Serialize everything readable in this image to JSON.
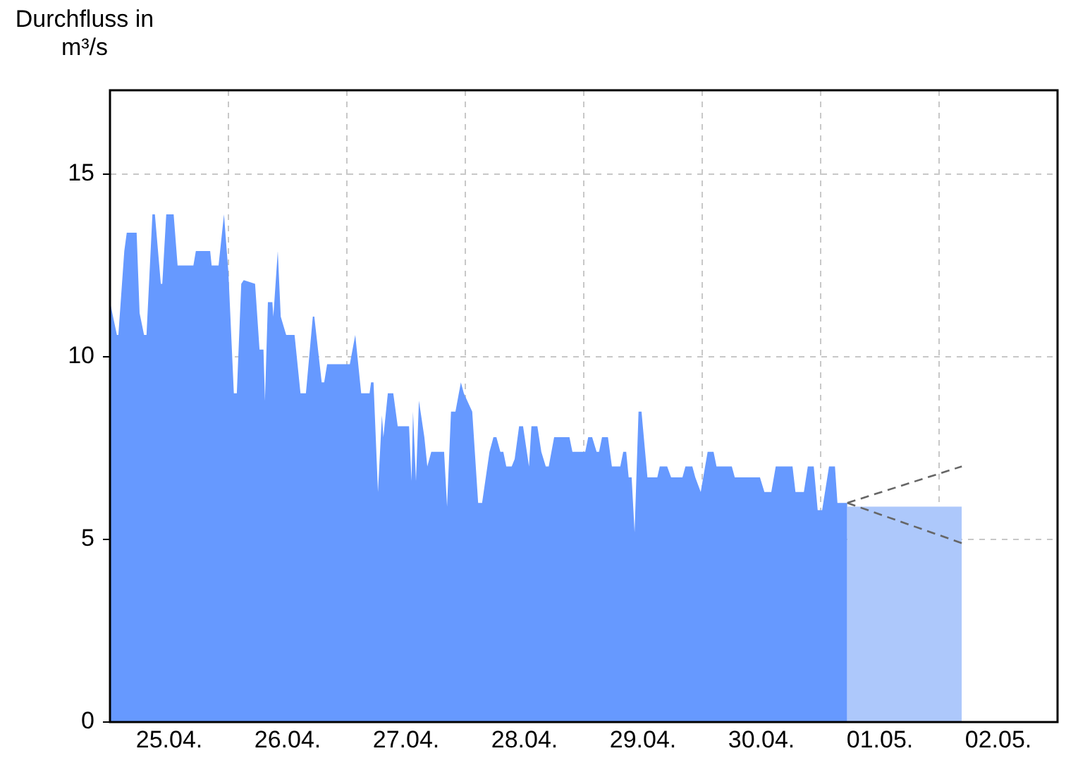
{
  "chart_data": {
    "type": "area",
    "ylabel": "Durchfluss in m³/s",
    "xlim": [
      "--04-25T00:00",
      "--05-03T00:00"
    ],
    "xticks": [
      {
        "value": "--04-25T00:00",
        "label": null
      },
      {
        "value": "--04-25T12:00",
        "label": "25.04."
      },
      {
        "value": "--04-26T00:00",
        "label": null
      },
      {
        "value": "--04-26T12:00",
        "label": "26.04."
      },
      {
        "value": "--04-27T00:00",
        "label": null
      },
      {
        "value": "--04-27T12:00",
        "label": "27.04."
      },
      {
        "value": "--04-28T00:00",
        "label": null
      },
      {
        "value": "--04-28T12:00",
        "label": "28.04."
      },
      {
        "value": "--04-29T00:00",
        "label": null
      },
      {
        "value": "--04-29T12:00",
        "label": "29.04."
      },
      {
        "value": "--04-30T00:00",
        "label": null
      },
      {
        "value": "--04-30T12:00",
        "label": "30.04."
      },
      {
        "value": "--05-01T00:00",
        "label": null
      },
      {
        "value": "--05-01T12:00",
        "label": "01.05."
      },
      {
        "value": "--05-02T00:00",
        "label": null
      },
      {
        "value": "--05-02T12:00",
        "label": "02.05."
      },
      {
        "value": "--05-03T00:00",
        "label": null
      }
    ],
    "ylim": [
      0,
      17.3
    ],
    "yticks": [
      0,
      5,
      10,
      15
    ],
    "grid": true,
    "legend": false,
    "marker": "none",
    "series": [
      {
        "color": "#6699ff",
        "x": [
          "--04-25T00:00",
          "--04-25T01:24",
          "--04-25T01:42",
          "--04-25T02:54",
          "--04-25T03:24",
          "--04-25T05:24",
          "--04-25T06:00",
          "--04-25T06:54",
          "--04-25T07:24",
          "--04-25T08:36",
          "--04-25T09:06",
          "--04-25T10:18",
          "--04-25T10:36",
          "--04-25T11:24",
          "--04-25T12:54",
          "--04-25T13:42",
          "--04-25T16:54",
          "--04-25T17:24",
          "--04-25T20:18",
          "--04-25T20:36",
          "--04-25T22:00",
          "--04-25T23:06",
          "--04-26T00:00",
          "--04-26T01:06",
          "--04-26T01:42",
          "--04-26T02:36",
          "--04-26T03:06",
          "--04-26T05:24",
          "--04-26T06:18",
          "--04-26T07:06",
          "--04-26T07:24",
          "--04-26T08:00",
          "--04-26T08:54",
          "--04-26T09:06",
          "--04-26T10:00",
          "--04-26T10:36",
          "--04-26T11:42",
          "--04-26T13:24",
          "--04-26T14:36",
          "--04-26T15:42",
          "--04-26T17:06",
          "--04-26T17:24",
          "--04-26T18:54",
          "--04-26T19:24",
          "--04-26T20:00",
          "--04-27T00:36",
          "--04-27T01:42",
          "--04-27T02:54",
          "--04-27T04:36",
          "--04-27T04:54",
          "--04-27T05:24",
          "--04-27T06:18",
          "--04-27T07:06",
          "--04-27T07:24",
          "--04-27T08:18",
          "--04-27T09:24",
          "--04-27T10:18",
          "--04-27T12:36",
          "--04-27T13:06",
          "--04-27T13:24",
          "--04-27T14:00",
          "--04-27T14:36",
          "--04-27T15:42",
          "--04-27T16:18",
          "--04-27T17:06",
          "--04-27T19:42",
          "--04-27T20:18",
          "--04-27T21:06",
          "--04-27T22:00",
          "--04-27T23:06",
          "--04-27T23:42",
          "--04-28T01:24",
          "--04-28T02:36",
          "--04-28T03:24",
          "--04-28T04:54",
          "--04-28T05:42",
          "--04-28T06:18",
          "--04-28T07:06",
          "--04-28T07:42",
          "--04-28T08:18",
          "--04-28T09:24",
          "--04-28T10:00",
          "--04-28T10:54",
          "--04-28T11:42",
          "--04-28T12:54",
          "--04-28T13:24",
          "--04-28T14:36",
          "--04-28T15:24",
          "--04-28T16:18",
          "--04-28T16:54",
          "--04-28T18:00",
          "--04-28T21:06",
          "--04-28T21:42",
          "--04-29T00:18",
          "--04-29T00:54",
          "--04-29T01:42",
          "--04-29T02:36",
          "--04-29T03:06",
          "--04-29T03:42",
          "--04-29T04:54",
          "--04-29T05:42",
          "--04-29T07:24",
          "--04-29T08:00",
          "--04-29T08:36",
          "--04-29T09:06",
          "--04-29T09:42",
          "--04-29T10:18",
          "--04-29T11:06",
          "--04-29T11:42",
          "--04-29T12:54",
          "--04-29T14:54",
          "--04-29T15:24",
          "--04-29T16:54",
          "--04-29T17:42",
          "--04-29T20:00",
          "--04-29T20:36",
          "--04-29T22:00",
          "--04-29T22:36",
          "--04-29T23:42",
          "--04-30T01:06",
          "--04-30T02:18",
          "--04-30T02:54",
          "--04-30T06:00",
          "--04-30T06:36",
          "--04-30T11:42",
          "--04-30T12:36",
          "--04-30T14:00",
          "--04-30T14:54",
          "--04-30T18:18",
          "--04-30T18:54",
          "--04-30T20:36",
          "--04-30T21:24",
          "--04-30T22:36",
          "--04-30T23:24",
          "--05-01T00:18",
          "--05-01T01:42",
          "--05-01T02:54",
          "--05-01T03:24",
          "--05-01T05:24"
        ],
        "values": [
          11.5,
          10.6,
          10.6,
          12.9,
          13.4,
          13.4,
          11.2,
          10.6,
          10.6,
          13.9,
          13.9,
          12.0,
          12.0,
          13.9,
          13.9,
          12.5,
          12.5,
          12.9,
          12.9,
          12.5,
          12.5,
          13.9,
          12.3,
          9.0,
          9.0,
          12.0,
          12.1,
          12.0,
          10.2,
          10.2,
          8.8,
          11.5,
          11.5,
          11.1,
          12.9,
          11.1,
          10.6,
          10.6,
          9.0,
          9.0,
          11.1,
          11.1,
          9.3,
          9.3,
          9.8,
          9.8,
          10.6,
          9.0,
          9.0,
          9.3,
          9.3,
          6.3,
          8.4,
          7.8,
          9.0,
          9.0,
          8.1,
          8.1,
          6.6,
          8.5,
          6.6,
          8.8,
          7.8,
          7.0,
          7.4,
          7.4,
          5.9,
          8.5,
          8.5,
          9.3,
          9.0,
          8.5,
          6.0,
          6.0,
          7.4,
          7.8,
          7.8,
          7.4,
          7.4,
          7.0,
          7.0,
          7.2,
          8.1,
          8.1,
          7.0,
          8.1,
          8.1,
          7.4,
          7.0,
          7.0,
          7.8,
          7.8,
          7.4,
          7.4,
          7.8,
          7.8,
          7.4,
          7.4,
          7.8,
          7.8,
          7.0,
          7.0,
          7.4,
          7.4,
          6.7,
          6.7,
          5.2,
          8.5,
          8.5,
          6.7,
          6.7,
          7.0,
          7.0,
          6.7,
          6.7,
          7.0,
          7.0,
          6.7,
          6.3,
          7.4,
          7.4,
          7.0,
          7.0,
          6.7,
          6.7,
          6.3,
          6.3,
          7.0,
          7.0,
          6.3,
          6.3,
          7.0,
          7.0,
          5.8,
          5.8,
          7.0,
          7.0,
          6.0,
          6.0
        ]
      },
      {
        "color": "#adc8fb",
        "x": [
          "--05-01T05:24",
          "--05-02T04:36"
        ],
        "values": [
          5.9,
          5.9
        ]
      },
      {
        "type": "line",
        "color": "#666666",
        "line_style": "dashed",
        "x": [
          "--05-01T05:24",
          "--05-02T04:36"
        ],
        "values": [
          6.0,
          7.0
        ]
      },
      {
        "type": "line",
        "color": "#666666",
        "line_style": "dashed",
        "x": [
          "--05-01T05:24",
          "--05-02T04:36"
        ],
        "values": [
          6.0,
          4.9
        ]
      }
    ]
  }
}
